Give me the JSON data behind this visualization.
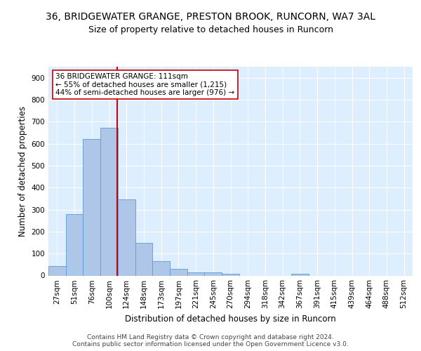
{
  "title_line1": "36, BRIDGEWATER GRANGE, PRESTON BROOK, RUNCORN, WA7 3AL",
  "title_line2": "Size of property relative to detached houses in Runcorn",
  "xlabel": "Distribution of detached houses by size in Runcorn",
  "ylabel": "Number of detached properties",
  "categories": [
    "27sqm",
    "51sqm",
    "76sqm",
    "100sqm",
    "124sqm",
    "148sqm",
    "173sqm",
    "197sqm",
    "221sqm",
    "245sqm",
    "270sqm",
    "294sqm",
    "318sqm",
    "342sqm",
    "367sqm",
    "391sqm",
    "415sqm",
    "439sqm",
    "464sqm",
    "488sqm",
    "512sqm"
  ],
  "bar_values": [
    42,
    280,
    622,
    672,
    347,
    147,
    65,
    30,
    15,
    13,
    9,
    0,
    0,
    0,
    8,
    0,
    0,
    0,
    0,
    0,
    0
  ],
  "bar_color": "#aec6e8",
  "bar_edge_color": "#5b9bd5",
  "vline_color": "#cc0000",
  "vline_pos": 3.45,
  "annotation_text": "36 BRIDGEWATER GRANGE: 111sqm\n← 55% of detached houses are smaller (1,215)\n44% of semi-detached houses are larger (976) →",
  "annotation_box_color": "#ffffff",
  "annotation_box_edge": "#cc0000",
  "ylim": [
    0,
    950
  ],
  "yticks": [
    0,
    100,
    200,
    300,
    400,
    500,
    600,
    700,
    800,
    900
  ],
  "background_color": "#ddeeff",
  "footer_text": "Contains HM Land Registry data © Crown copyright and database right 2024.\nContains public sector information licensed under the Open Government Licence v3.0.",
  "title_fontsize": 10,
  "subtitle_fontsize": 9,
  "label_fontsize": 8.5,
  "tick_fontsize": 7.5,
  "annotation_fontsize": 7.5,
  "footer_fontsize": 6.5
}
